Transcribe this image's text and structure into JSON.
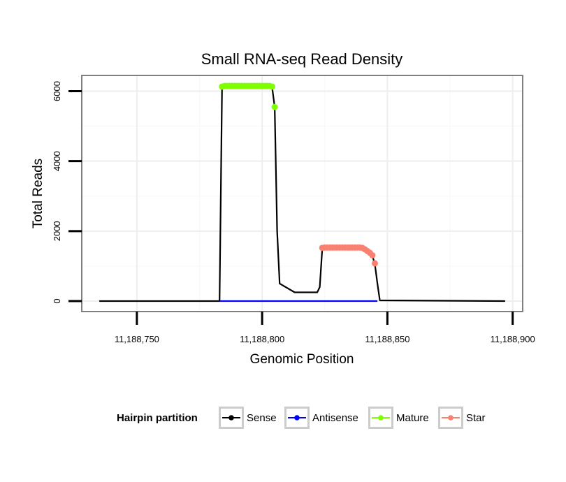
{
  "chart_data": {
    "type": "line",
    "title": "Small RNA-seq Read Density",
    "xlabel": "Genomic Position",
    "ylabel": "Total Reads",
    "xlim": [
      11188728,
      11188904
    ],
    "ylim": [
      -300,
      6450
    ],
    "x_ticks": [
      11188750,
      11188800,
      11188850,
      11188900
    ],
    "x_tick_labels": [
      "11,188,750",
      "11,188,800",
      "11,188,850",
      "11,188,900"
    ],
    "y_ticks": [
      0,
      2000,
      4000,
      6000
    ],
    "y_tick_labels": [
      "0",
      "2000",
      "4000",
      "6000"
    ],
    "grid": true,
    "legend": {
      "title": "Hairpin partition",
      "position": "bottom",
      "entries": [
        {
          "name": "Sense",
          "color": "#000000"
        },
        {
          "name": "Antisense",
          "color": "#0000ff"
        },
        {
          "name": "Mature",
          "color": "#7fff00"
        },
        {
          "name": "Star",
          "color": "#fa8072"
        }
      ]
    },
    "series": [
      {
        "name": "Sense",
        "color": "#000000",
        "style": "line",
        "x": [
          11188735,
          11188783,
          11188784,
          11188800,
          11188804,
          11188805,
          11188806,
          11188807,
          11188813,
          11188818,
          11188822,
          11188823,
          11188824,
          11188840,
          11188842,
          11188844,
          11188845,
          11188846,
          11188847,
          11188897
        ],
        "y": [
          0,
          0,
          6150,
          6150,
          6100,
          5550,
          2000,
          500,
          250,
          250,
          250,
          400,
          1500,
          1500,
          1450,
          1300,
          1050,
          500,
          20,
          0
        ]
      },
      {
        "name": "Antisense",
        "color": "#0000ff",
        "style": "line",
        "x": [
          11188783,
          11188846
        ],
        "y": [
          0,
          0
        ]
      },
      {
        "name": "Mature",
        "color": "#7fff00",
        "style": "points",
        "x": [
          11188784,
          11188785,
          11188786,
          11188787,
          11188788,
          11188789,
          11188790,
          11188791,
          11188792,
          11188793,
          11188794,
          11188795,
          11188796,
          11188797,
          11188798,
          11188799,
          11188800,
          11188801,
          11188802,
          11188803,
          11188804,
          11188805
        ],
        "y": [
          6130,
          6150,
          6150,
          6150,
          6150,
          6150,
          6150,
          6150,
          6150,
          6150,
          6150,
          6150,
          6150,
          6150,
          6150,
          6150,
          6150,
          6150,
          6150,
          6150,
          6130,
          5550
        ]
      },
      {
        "name": "Star",
        "color": "#fa8072",
        "style": "points",
        "x": [
          11188824,
          11188825,
          11188826,
          11188827,
          11188828,
          11188829,
          11188830,
          11188831,
          11188832,
          11188833,
          11188834,
          11188835,
          11188836,
          11188837,
          11188838,
          11188839,
          11188840,
          11188841,
          11188842,
          11188843,
          11188844,
          11188845
        ],
        "y": [
          1520,
          1530,
          1530,
          1530,
          1530,
          1530,
          1530,
          1530,
          1530,
          1530,
          1530,
          1530,
          1530,
          1530,
          1530,
          1530,
          1520,
          1480,
          1430,
          1380,
          1310,
          1080
        ]
      }
    ]
  }
}
